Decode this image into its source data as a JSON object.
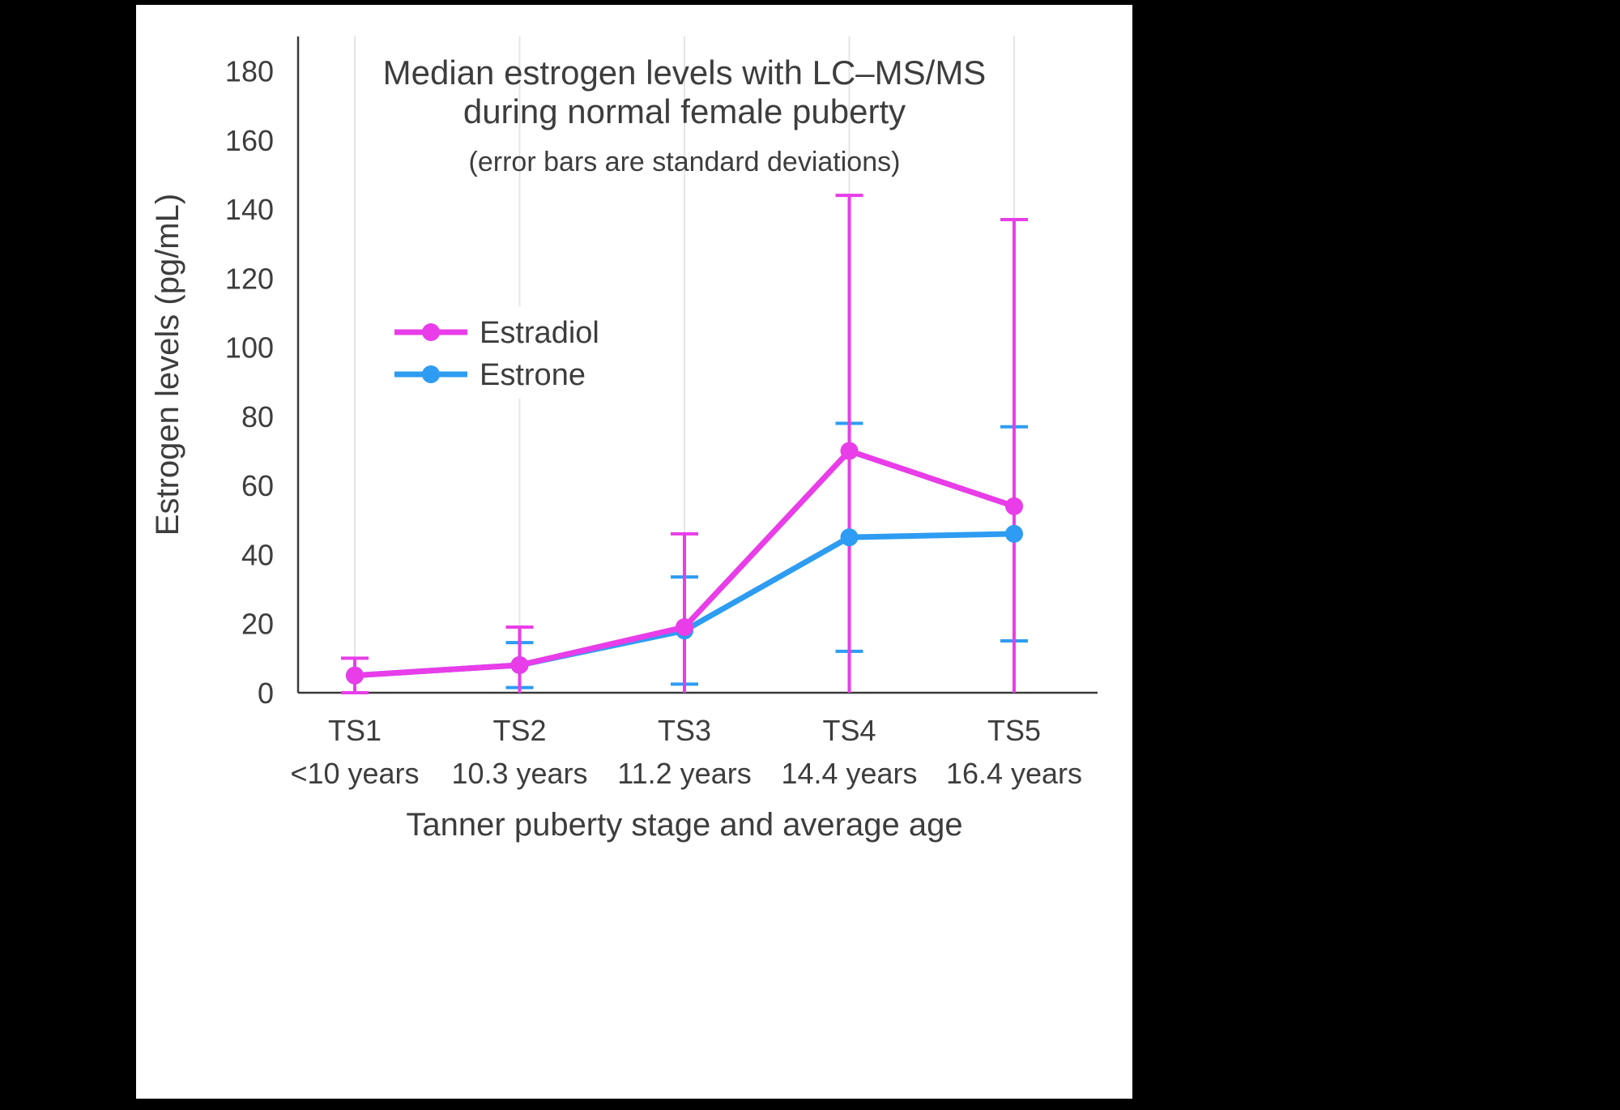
{
  "page": {
    "background_color": "#000000",
    "panel_background_color": "#ffffff"
  },
  "chart_data": {
    "type": "line",
    "title": "Median estrogen levels with LC–MS/MS during normal female puberty",
    "title_lines": [
      "Median estrogen levels with LC–MS/MS",
      "during normal female puberty"
    ],
    "subtitle": "(error bars are standard deviations)",
    "xlabel": "Tanner puberty stage and average age",
    "ylabel": "Estrogen levels (pg/mL)",
    "categories": [
      "TS1",
      "TS2",
      "TS3",
      "TS4",
      "TS5"
    ],
    "category_sublabels": [
      "<10 years",
      "10.3 years",
      "11.2 years",
      "14.4 years",
      "16.4 years"
    ],
    "yticks": [
      0,
      20,
      40,
      60,
      80,
      100,
      120,
      140,
      160,
      180
    ],
    "ylim": [
      0,
      190
    ],
    "grid": "vertical-only",
    "legend_position": "inside-upper-left",
    "error_bars": "standard deviations, clipped at 0",
    "series": [
      {
        "name": "Estradiol",
        "color": "#e83de8",
        "values": [
          5,
          8,
          19,
          70,
          54
        ],
        "sd": [
          5,
          11,
          27,
          74,
          83
        ]
      },
      {
        "name": "Estrone",
        "color": "#2d9cf2",
        "values": [
          5,
          8,
          18,
          45,
          46
        ],
        "sd": [
          0,
          6.5,
          15.5,
          33,
          31
        ]
      }
    ],
    "text_color": "#3d3d3d",
    "axis_color": "#3a3a3a",
    "grid_color": "#e4e4e4"
  }
}
